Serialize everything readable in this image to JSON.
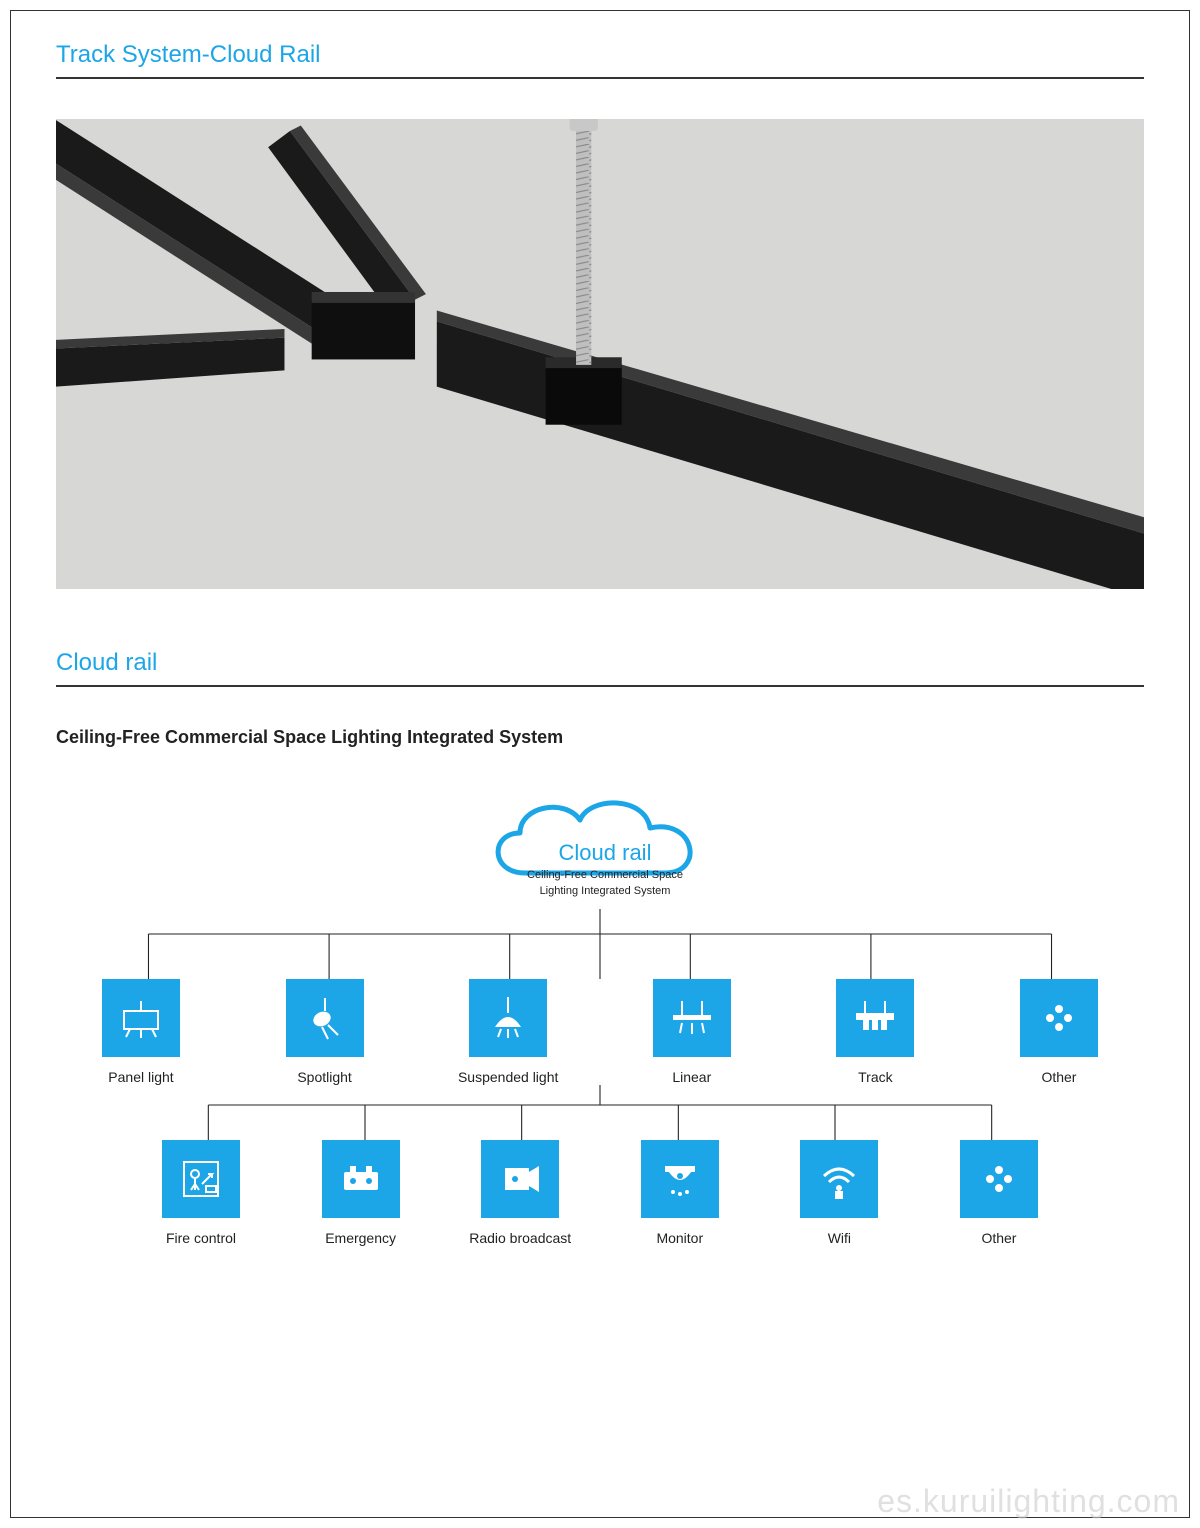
{
  "title1": "Track System-Cloud Rail",
  "title2": "Cloud rail",
  "subtitle": "Ceiling-Free Commercial Space Lighting Integrated System",
  "cloud": {
    "label": "Cloud rail",
    "sub1": "Ceiling-Free Commercial Space",
    "sub2": "Lighting Integrated System",
    "stroke": "#1ca6e8"
  },
  "colors": {
    "accent": "#1ca6e8",
    "iconBg": "#1ca6e8",
    "iconFg": "#ffffff",
    "heroBg": "#d7d7d6",
    "railDark": "#1a1a1a",
    "railLight": "#444444",
    "rod": "#bfbfbf"
  },
  "row1": [
    {
      "label": "Panel light",
      "icon": "panel"
    },
    {
      "label": "Spotlight",
      "icon": "spotlight"
    },
    {
      "label": "Suspended light",
      "icon": "suspended"
    },
    {
      "label": "Linear",
      "icon": "linear"
    },
    {
      "label": "Track",
      "icon": "track"
    },
    {
      "label": "Other",
      "icon": "other"
    }
  ],
  "row2": [
    {
      "label": "Fire control",
      "icon": "fire"
    },
    {
      "label": "Emergency",
      "icon": "emergency"
    },
    {
      "label": "Radio broadcast",
      "icon": "radio"
    },
    {
      "label": "Monitor",
      "icon": "monitor"
    },
    {
      "label": "Wifi",
      "icon": "wifi"
    },
    {
      "label": "Other",
      "icon": "other"
    }
  ],
  "watermark": "es.kuruilighting.com"
}
